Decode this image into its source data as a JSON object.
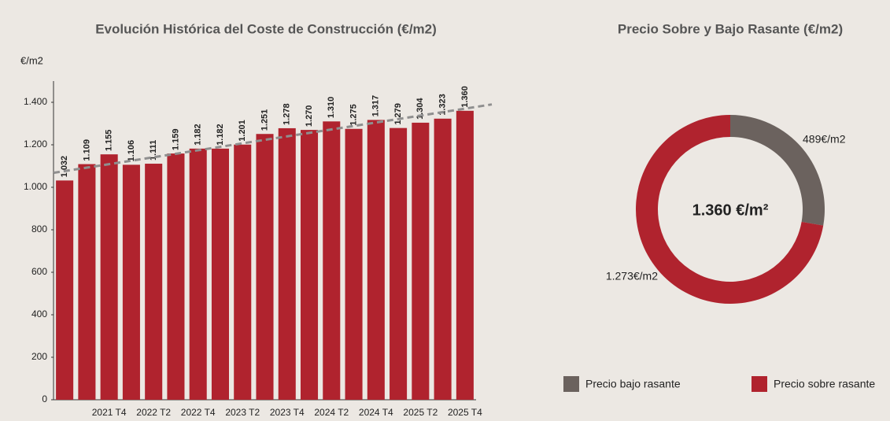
{
  "chart_data": [
    {
      "type": "bar",
      "title": "Evolución Histórica del Coste de Construcción (€/m2)",
      "y_label": "€/m2",
      "categories": [
        null,
        null,
        "2021 T4",
        null,
        "2022 T2",
        null,
        "2022 T4",
        null,
        "2023 T2",
        null,
        "2023 T4",
        null,
        "2024 T2",
        null,
        "2024 T4",
        null,
        "2025 T2",
        null,
        "2025 T4"
      ],
      "values": [
        1032,
        1109,
        1155,
        1106,
        1111,
        1159,
        1182,
        1182,
        1201,
        1251,
        1278,
        1270,
        1310,
        1275,
        1317,
        1279,
        1304,
        1323,
        1360
      ],
      "value_labels": [
        "1.032",
        "1.109",
        "1.155",
        "1.106",
        "1.111",
        "1.159",
        "1.182",
        "1.182",
        "1.201",
        "1.251",
        "1.278",
        "1.270",
        "1.310",
        "1.275",
        "1.317",
        "1.279",
        "1.304",
        "1.323",
        "1.360"
      ],
      "color": "#b0232e",
      "trend_line": {
        "color": "#8f8f8f",
        "values": [
          1068,
          1390
        ]
      },
      "ylim": [
        0,
        1500
      ],
      "yticks": [
        0,
        200,
        400,
        600,
        800,
        {
          "value": 1000,
          "label": "1.000"
        },
        {
          "value": 1200,
          "label": "1.200"
        },
        {
          "value": 1400,
          "label": "1.400"
        }
      ],
      "grid": false
    },
    {
      "type": "donut",
      "title": "Precio Sobre y Bajo Rasante (€/m2)",
      "center_label": "1.360 €/m²",
      "categories": [
        "Precio bajo rasante",
        "Precio sobre rasante"
      ],
      "values": [
        489,
        1273
      ],
      "value_labels": [
        "489€/m2",
        "1.273€/m2"
      ],
      "colors": [
        "#6b625e",
        "#b0232e"
      ]
    }
  ]
}
